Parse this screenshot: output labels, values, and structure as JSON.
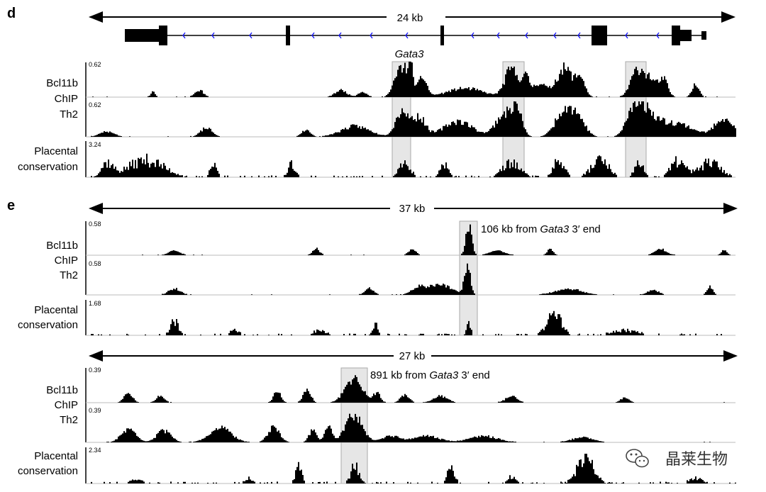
{
  "panels": [
    {
      "letter": "d",
      "scale": "24 kb",
      "gene": "Gata3",
      "tracks": [
        {
          "label": "Bcl11b",
          "ymax": "0.62"
        },
        {
          "label": "ChIP",
          "ymax": "0.62"
        },
        {
          "label": "Th2"
        },
        {
          "label": "Placental",
          "ymax": "3.24"
        },
        {
          "label": "conservation"
        }
      ]
    },
    {
      "letter": "e",
      "scale": "37 kb",
      "annotation": {
        "prefix": "106 kb from ",
        "gene": "Gata3",
        "suffix": " 3′ end"
      },
      "tracks": [
        {
          "label": "Bcl11b",
          "ymax": "0.58"
        },
        {
          "label": "ChIP",
          "ymax": "0.58"
        },
        {
          "label": "Th2"
        },
        {
          "label": "Placental",
          "ymax": "1.68"
        },
        {
          "label": "conservation"
        }
      ]
    },
    {
      "scale": "27 kb",
      "annotation": {
        "prefix": "891 kb from ",
        "gene": "Gata3",
        "suffix": " 3′ end"
      },
      "tracks": [
        {
          "label": "Bcl11b",
          "ymax": "0.39"
        },
        {
          "label": "ChIP",
          "ymax": "0.39"
        },
        {
          "label": "Th2"
        },
        {
          "label": "Placental",
          "ymax": "2.34"
        },
        {
          "label": "conservation"
        }
      ]
    }
  ],
  "watermark": {
    "text": "晶莱生物",
    "icon": "wechat-icon"
  },
  "colors": {
    "signal": "#000000",
    "highlight": "#e4e4e4",
    "intron_arrows": "#1a1aff"
  }
}
